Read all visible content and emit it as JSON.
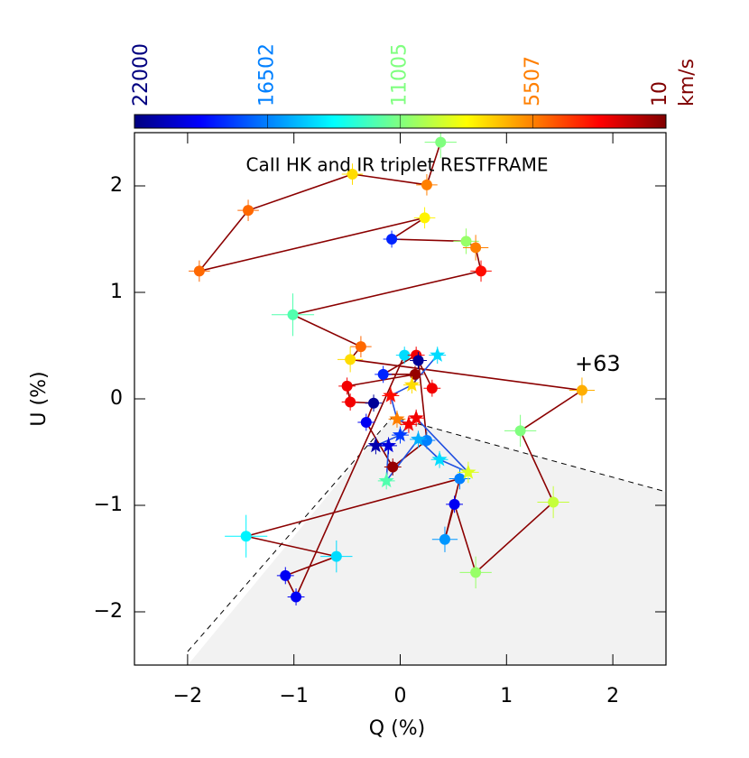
{
  "chart_data": {
    "type": "scatter",
    "title": "CaII HK and IR triplet RESTFRAME",
    "x_label": "Q (%)",
    "y_label": "U (%)",
    "annotation": "+63",
    "xlim": [
      -2.5,
      2.5
    ],
    "ylim": [
      -2.5,
      2.5
    ],
    "xticks": [
      {
        "value": -2,
        "label": "−2"
      },
      {
        "value": -1,
        "label": "−1"
      },
      0,
      1,
      2
    ],
    "yticks": [
      {
        "value": -2,
        "label": "−2"
      },
      {
        "value": -1,
        "label": "−1"
      },
      0,
      1,
      2
    ],
    "colorbar": {
      "lim": [
        22000,
        10
      ],
      "ticks": [
        22000,
        16502,
        11005,
        5507,
        10
      ],
      "unit": "km/s",
      "colormap": "jet"
    },
    "series": [
      {
        "marker": "circle",
        "line_color": "#8b0000",
        "x": [
          0.38,
          0.25,
          -0.45,
          -1.43,
          -1.89,
          0.23,
          -0.08,
          0.62,
          0.71,
          0.76,
          -1.01,
          -0.37,
          -0.47,
          1.71,
          1.13,
          1.44,
          0.71,
          0.51,
          0.42,
          0.56,
          -1.45,
          -0.6,
          -1.08,
          -0.98,
          0.04,
          0.15,
          -0.16,
          0.14,
          -0.5,
          -0.47,
          -0.25,
          -0.32,
          -0.07,
          0.25,
          0.17,
          0.3
        ],
        "values": [
          2.41,
          2.01,
          2.11,
          1.77,
          1.2,
          1.7,
          1.5,
          1.48,
          1.42,
          1.2,
          0.79,
          0.49,
          0.37,
          0.08,
          -0.3,
          -0.97,
          -1.63,
          -0.99,
          -1.32,
          -0.75,
          -1.29,
          -1.48,
          -1.66,
          -1.86,
          0.41,
          0.41,
          0.23,
          0.23,
          0.12,
          -0.03,
          -0.04,
          -0.22,
          -0.64,
          -0.39,
          0.36,
          0.1
        ],
        "velocity": [
          11000,
          5500,
          7500,
          5000,
          5000,
          8000,
          18500,
          10500,
          5500,
          3000,
          12000,
          5000,
          7500,
          6500,
          11000,
          9500,
          10500,
          19500,
          16000,
          16500,
          14000,
          14500,
          19500,
          19500,
          14500,
          2500,
          18500,
          500,
          2500,
          2500,
          21500,
          19500,
          500,
          16500,
          21500,
          2500
        ],
        "err": [
          0.15,
          0.1,
          0.1,
          0.1,
          0.1,
          0.1,
          0.08,
          0.12,
          0.12,
          0.1,
          0.2,
          0.1,
          0.12,
          0.12,
          0.15,
          0.15,
          0.15,
          0.08,
          0.12,
          0.1,
          0.2,
          0.15,
          0.08,
          0.08,
          0.08,
          0.08,
          0.08,
          0.08,
          0.08,
          0.08,
          0.08,
          0.08,
          0.08,
          0.08,
          0.08,
          0.08
        ]
      },
      {
        "marker": "star",
        "line_color": "#1f4fe0",
        "x": [
          0.35,
          0.11,
          -0.09,
          -0.03,
          0.08,
          0.0,
          -0.23,
          -0.11,
          -0.13,
          0.17,
          0.37,
          0.64,
          0.15
        ],
        "values": [
          0.41,
          0.13,
          0.03,
          -0.19,
          -0.24,
          -0.34,
          -0.44,
          -0.44,
          -0.77,
          -0.38,
          -0.57,
          -0.69,
          -0.18
        ],
        "velocity": [
          14500,
          7500,
          3000,
          5500,
          2500,
          18000,
          21000,
          20000,
          12000,
          15500,
          14500,
          9000,
          2500
        ],
        "err": [
          0.08,
          0.08,
          0.08,
          0.08,
          0.08,
          0.08,
          0.08,
          0.08,
          0.08,
          0.08,
          0.08,
          0.1,
          0.08
        ]
      }
    ]
  }
}
